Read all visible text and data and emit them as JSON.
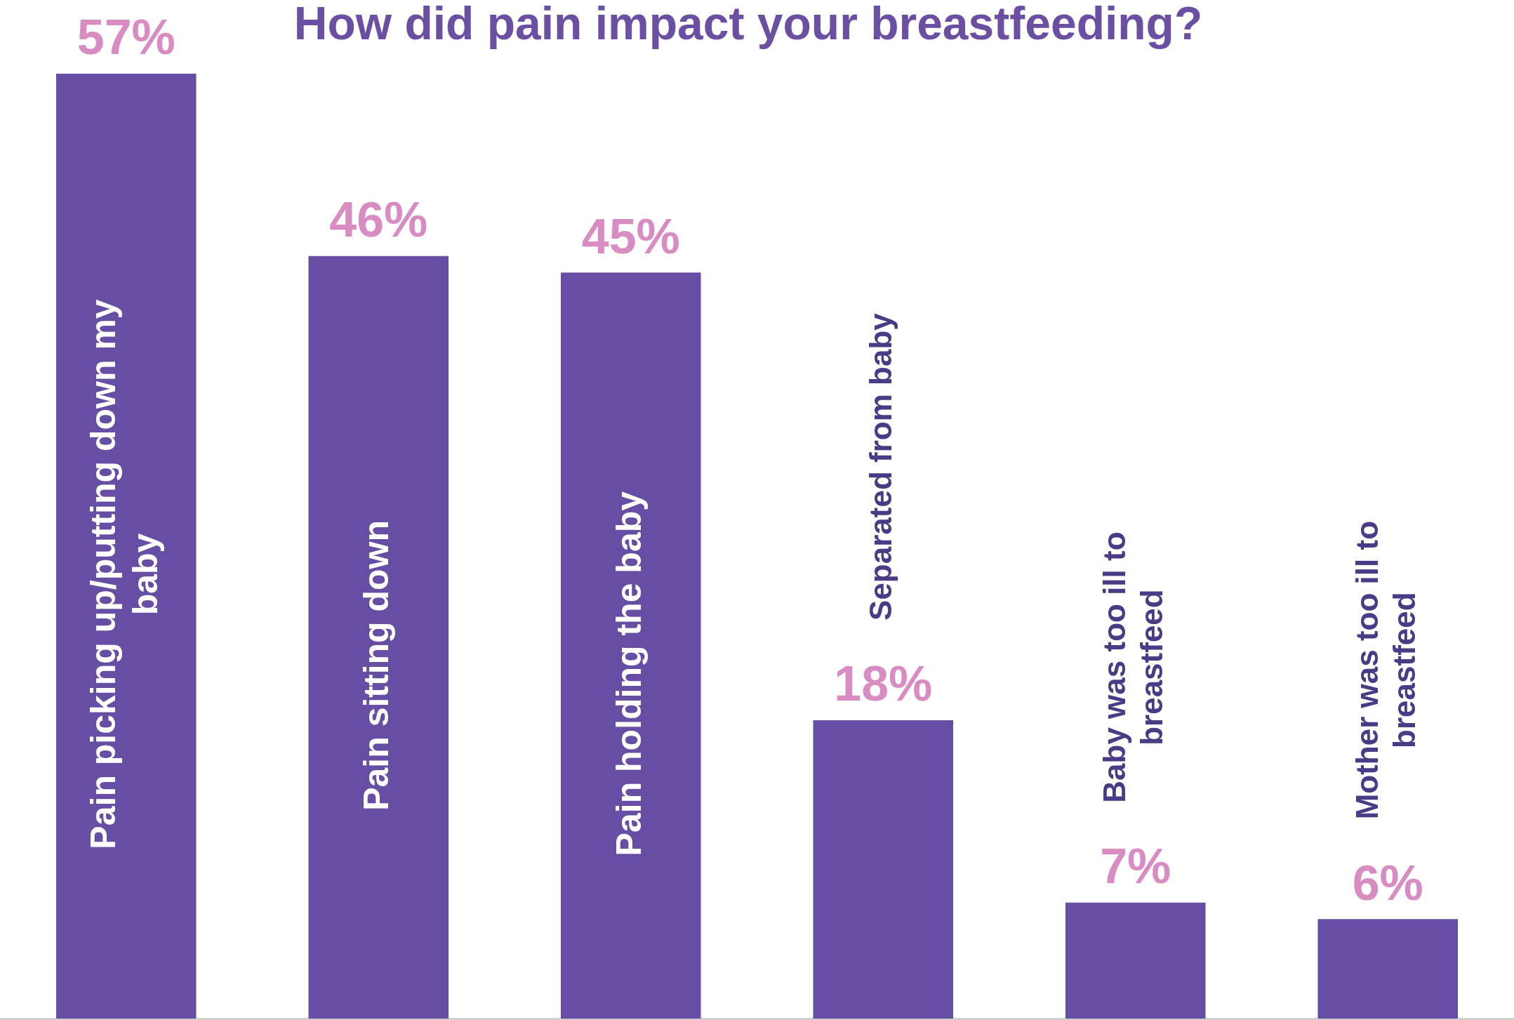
{
  "chart_data": {
    "type": "bar",
    "title": "How did pain impact your breastfeeding?",
    "categories": [
      "Pain picking up/putting down my baby",
      "Pain sitting down",
      "Pain holding the baby",
      "Separated from baby",
      "Baby was too ill to breastfeed",
      "Mother was too ill to breastfeed"
    ],
    "values": [
      57,
      46,
      45,
      18,
      7,
      6
    ],
    "value_labels": [
      "57%",
      "46%",
      "45%",
      "18%",
      "7%",
      "6%"
    ],
    "color": "#654ea3",
    "tick_labels": "x"
  }
}
